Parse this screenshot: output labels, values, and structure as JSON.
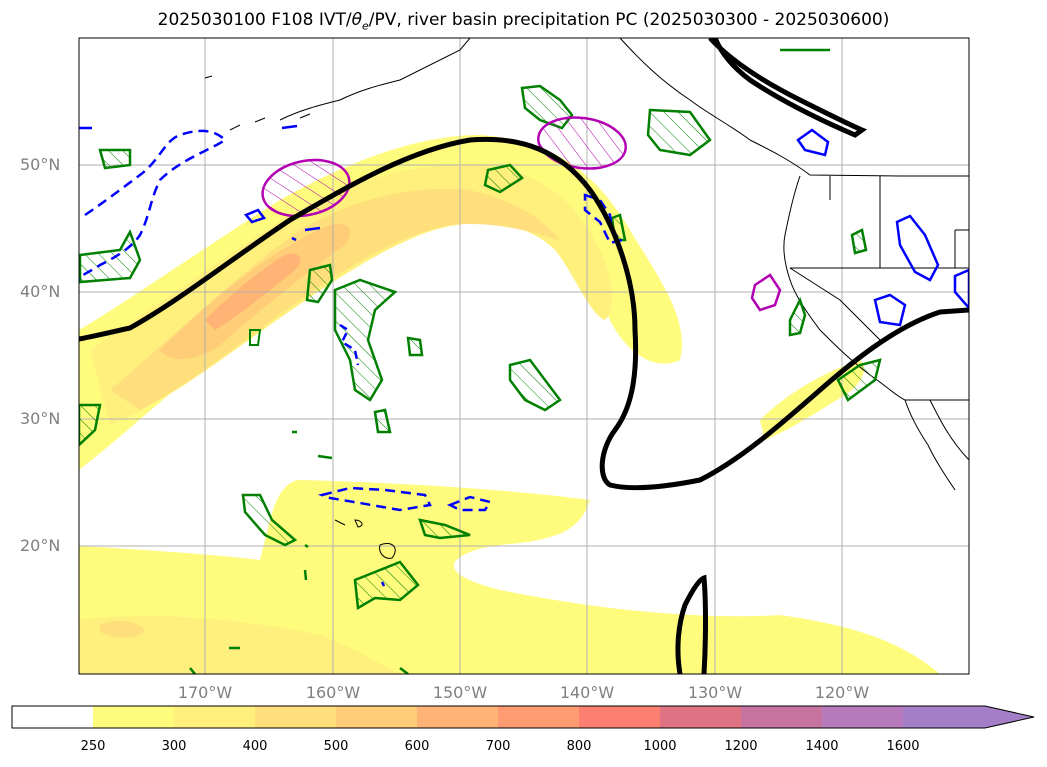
{
  "title_main": "2025030100 F108 IVT/",
  "title_theta": "θ",
  "title_sub": "e",
  "title_rest": "/PV, river basin precipitation PC (2025030300 - 2025030600)",
  "lat_labels": [
    "50°N",
    "40°N",
    "30°N",
    "20°N"
  ],
  "lon_labels": [
    "170°W",
    "160°W",
    "150°W",
    "140°W",
    "130°W",
    "120°W"
  ],
  "colorbar": {
    "ticks": [
      "250",
      "300",
      "400",
      "500",
      "600",
      "700",
      "800",
      "1000",
      "1200",
      "1400",
      "1600"
    ],
    "colors": [
      "#ffffff",
      "#fffb7c",
      "#fff07e",
      "#ffdf7b",
      "#ffcc78",
      "#ffb375",
      "#fe9b72",
      "#fb8070",
      "#e07383",
      "#c673a0",
      "#b77bbd",
      "#a57ec8"
    ]
  },
  "legend_colors": {
    "pv": "#000000",
    "green": "#008000",
    "blue": "#0000ff",
    "magenta": "#b200b2"
  }
}
